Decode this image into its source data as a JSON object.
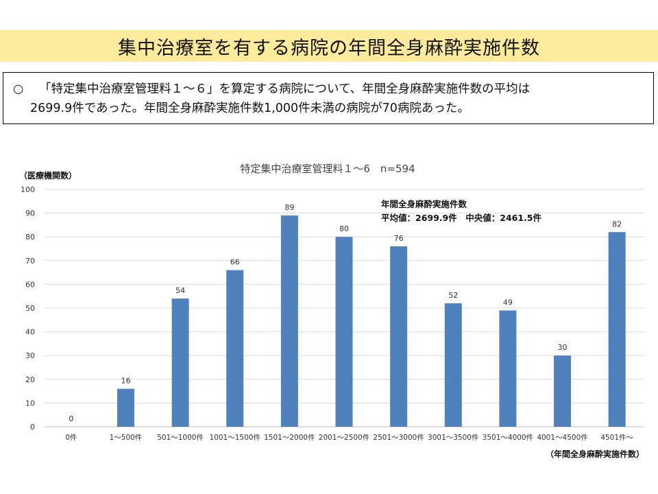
{
  "header": {
    "title": "集中治療室を有する病院の年間全身麻酔実施件数"
  },
  "summary": {
    "bullet": "○",
    "line1": "「特定集中治療室管理料１～６」を算定する病院について、年間全身麻酔実施件数の平均は",
    "line2": "2699.9件であった。年間全身麻酔実施件数1,000件未満の病院が70病院あった。"
  },
  "chart_data": {
    "type": "bar",
    "title": "特定集中治療室管理料１～6　n=594",
    "ylabel": "（医療機関数）",
    "xlabel": "（年間全身麻酔実施件数）",
    "categories": [
      "0件",
      "1～500件",
      "501～1000件",
      "1001～1500件",
      "1501～2000件",
      "2001～2500件",
      "2501～3000件",
      "3001～3500件",
      "3501～4000件",
      "4001～4500件",
      "4501件～"
    ],
    "values": [
      0,
      16,
      54,
      66,
      89,
      80,
      76,
      52,
      49,
      30,
      82
    ],
    "ylim": [
      0,
      100
    ],
    "yticks": [
      0,
      10,
      20,
      30,
      40,
      50,
      60,
      70,
      80,
      90,
      100
    ],
    "grid": true,
    "bar_color": "#4f81bd",
    "annotation": {
      "line1": "年間全身麻酔実施件数",
      "line2": "平均値：2699.9件　中央値：2461.5件"
    }
  }
}
